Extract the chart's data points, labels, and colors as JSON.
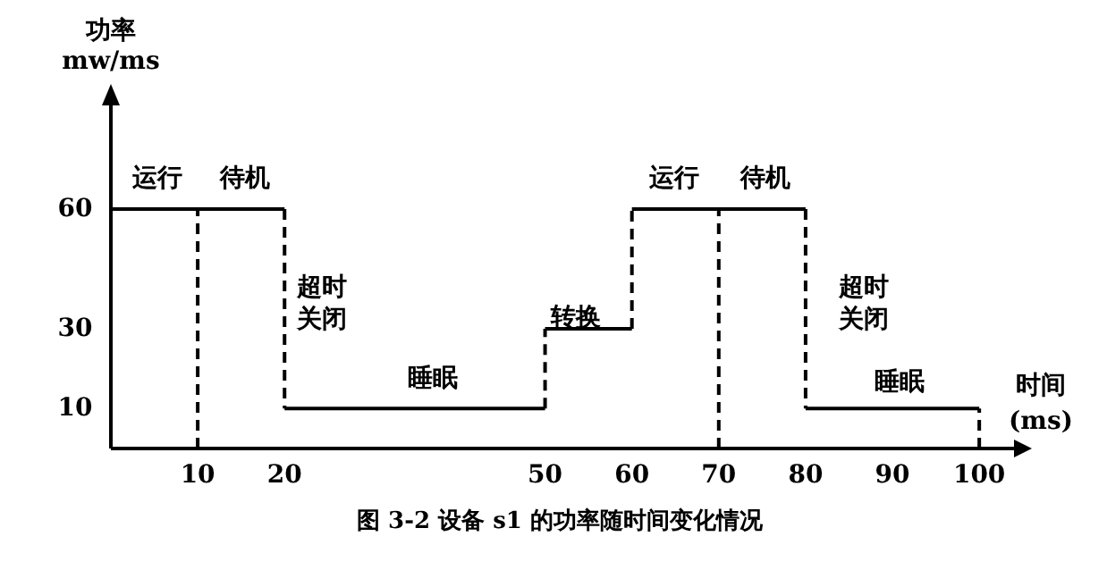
{
  "chart_data": {
    "type": "step",
    "title": "图 3-2 设备 s1 的功率随时间变化情况",
    "xlabel": "时间\n(ms)",
    "ylabel": "功率\nmw/ms",
    "x": [
      0,
      20,
      50,
      60,
      80,
      100
    ],
    "series": [
      {
        "color": "#000000",
        "values": [
          60,
          10,
          30,
          60,
          10,
          10
        ]
      }
    ],
    "xlim": [
      0,
      104
    ],
    "ylim": [
      0,
      86
    ],
    "xticks": [
      10,
      20,
      50,
      60,
      70,
      80,
      90,
      100
    ],
    "yticks": [
      10,
      30,
      60
    ],
    "ref_lines": [
      {
        "axis": "x",
        "value": 10,
        "line_style": "dashed"
      },
      {
        "axis": "x",
        "value": 70,
        "line_style": "dashed"
      },
      {
        "axis": "x",
        "value": 100,
        "line_style": "dashed"
      }
    ],
    "annotations": [
      "运行",
      "待机",
      "超时关闭",
      "睡眠",
      "转换",
      "运行",
      "待机",
      "超时关闭",
      "睡眠"
    ]
  }
}
